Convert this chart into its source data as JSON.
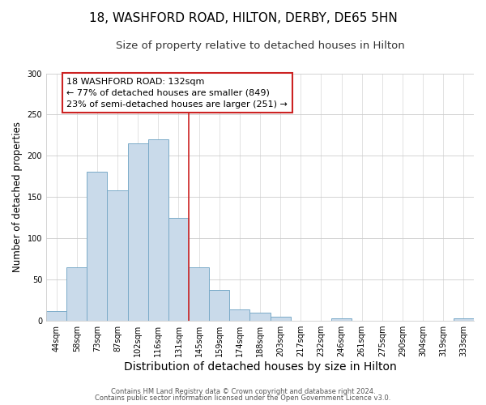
{
  "title": "18, WASHFORD ROAD, HILTON, DERBY, DE65 5HN",
  "subtitle": "Size of property relative to detached houses in Hilton",
  "xlabel": "Distribution of detached houses by size in Hilton",
  "ylabel": "Number of detached properties",
  "bar_labels": [
    "44sqm",
    "58sqm",
    "73sqm",
    "87sqm",
    "102sqm",
    "116sqm",
    "131sqm",
    "145sqm",
    "159sqm",
    "174sqm",
    "188sqm",
    "203sqm",
    "217sqm",
    "232sqm",
    "246sqm",
    "261sqm",
    "275sqm",
    "290sqm",
    "304sqm",
    "319sqm",
    "333sqm"
  ],
  "bar_values": [
    12,
    65,
    181,
    158,
    215,
    220,
    125,
    65,
    37,
    14,
    10,
    5,
    0,
    0,
    3,
    0,
    0,
    0,
    0,
    0,
    3
  ],
  "bar_color": "#c9daea",
  "bar_edge_color": "#7aaac8",
  "highlight_bar_index": 6,
  "vline_x_offset": 0.5,
  "vline_color": "#cc2222",
  "ylim": [
    0,
    300
  ],
  "yticks": [
    0,
    50,
    100,
    150,
    200,
    250,
    300
  ],
  "annotation_title": "18 WASHFORD ROAD: 132sqm",
  "annotation_line1": "← 77% of detached houses are smaller (849)",
  "annotation_line2": "23% of semi-detached houses are larger (251) →",
  "footer1": "Contains HM Land Registry data © Crown copyright and database right 2024.",
  "footer2": "Contains public sector information licensed under the Open Government Licence v3.0.",
  "background_color": "#ffffff",
  "plot_background_color": "#ffffff",
  "grid_color": "#cccccc",
  "title_fontsize": 11,
  "subtitle_fontsize": 9.5,
  "xlabel_fontsize": 10,
  "ylabel_fontsize": 8.5,
  "tick_fontsize": 7,
  "annotation_fontsize": 8,
  "annotation_box_edge_color": "#cc2222",
  "annotation_box_face_color": "#ffffff",
  "footer_fontsize": 6
}
